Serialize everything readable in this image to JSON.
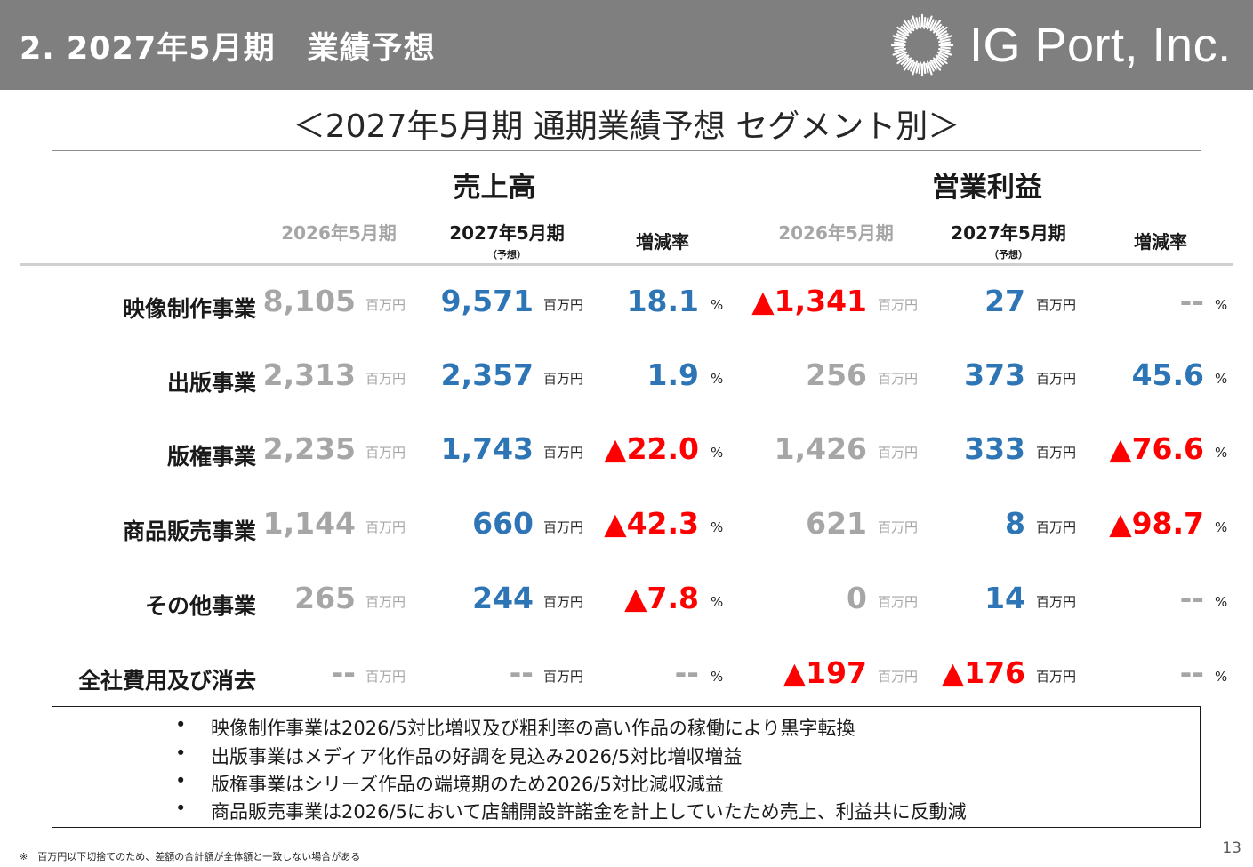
{
  "header": {
    "title": "2. 2027年5月期　業績予想",
    "logo_text": "IG Port, Inc."
  },
  "subtitle": "＜2027年5月期 通期業績予想 セグメント別＞",
  "groups": {
    "sales": "売上高",
    "profit": "営業利益"
  },
  "columns": {
    "prev": "2026年5月期",
    "next": "2027年5月期",
    "next_sub": "（予想）",
    "rate": "増減率"
  },
  "units": {
    "money": "百万円",
    "percent": "%"
  },
  "rows": [
    {
      "label": "映像制作事業",
      "sales_prev": "8,105",
      "sales_next": "9,571",
      "sales_rate": "18.1",
      "op_prev": "▲1,341",
      "op_next": "27",
      "op_rate": "--"
    },
    {
      "label": "出版事業",
      "sales_prev": "2,313",
      "sales_next": "2,357",
      "sales_rate": "1.9",
      "op_prev": "256",
      "op_next": "373",
      "op_rate": "45.6"
    },
    {
      "label": "版権事業",
      "sales_prev": "2,235",
      "sales_next": "1,743",
      "sales_rate": "▲22.0",
      "op_prev": "1,426",
      "op_next": "333",
      "op_rate": "▲76.6"
    },
    {
      "label": "商品販売事業",
      "sales_prev": "1,144",
      "sales_next": "660",
      "sales_rate": "▲42.3",
      "op_prev": "621",
      "op_next": "8",
      "op_rate": "▲98.7"
    },
    {
      "label": "その他事業",
      "sales_prev": "265",
      "sales_next": "244",
      "sales_rate": "▲7.8",
      "op_prev": "0",
      "op_next": "14",
      "op_rate": "--"
    },
    {
      "label": "全社費用及び消去",
      "sales_prev": "--",
      "sales_next": "--",
      "sales_rate": "--",
      "op_prev": "▲197",
      "op_next": "▲176",
      "op_rate": "--"
    }
  ],
  "notes": [
    "映像制作事業は2026/5対比増収及び粗利率の高い作品の稼働により黒字転換",
    "出版事業はメディア化作品の好調を見込み2026/5対比増収増益",
    "版権事業はシリーズ作品の端境期のため2026/5対比減収減益",
    "商品販売事業は2026/5において店舗開設許諾金を計上していたため売上、利益共に反動減"
  ],
  "note_bullet": "•",
  "footnote": "※　百万円以下切捨てのため、差額の合計額が全体額と一致しない場合がある",
  "page_number": "13",
  "colors": {
    "header_bg": "#7f7f7f",
    "blue": "#2e75b6",
    "red": "#ff0000",
    "gray": "#a6a6a6"
  }
}
